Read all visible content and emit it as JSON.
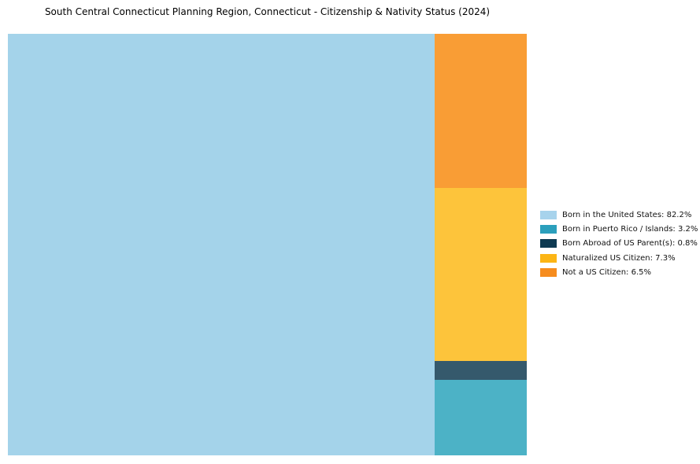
{
  "page": {
    "background": "#ffffff"
  },
  "chart_data": {
    "type": "treemap",
    "title": "South Central Connecticut Planning Region, Connecticut - Citizenship & Nativity Status (2024)",
    "items": [
      {
        "label": "Born in the United States",
        "value": 82.2,
        "color": "#A4D3EA",
        "legend_color": "#A7D3EC",
        "legend_text": "Born in the United States: 82.2%"
      },
      {
        "label": "Born in Puerto Rico / Islands",
        "value": 3.2,
        "color": "#4CB2C6",
        "legend_color": "#2B9FBC",
        "legend_text": "Born in Puerto Rico / Islands: 3.2%"
      },
      {
        "label": "Born Abroad of US Parent(s)",
        "value": 0.8,
        "color": "#35596C",
        "legend_color": "#0E3A52",
        "legend_text": "Born Abroad of US Parent(s): 0.8%"
      },
      {
        "label": "Naturalized US Citizen",
        "value": 7.3,
        "color": "#FDC43B",
        "legend_color": "#FCB515",
        "legend_text": "Naturalized US Citizen: 7.3%"
      },
      {
        "label": "Not a US Citizen",
        "value": 6.5,
        "color": "#F99D35",
        "legend_color": "#F68C1E",
        "legend_text": "Not a US Citizen: 6.5%"
      }
    ],
    "layout": {
      "main_index": 0,
      "column_indexes_top_to_bottom": [
        4,
        3,
        2,
        1
      ],
      "legend_position": "right",
      "grid": false
    }
  }
}
